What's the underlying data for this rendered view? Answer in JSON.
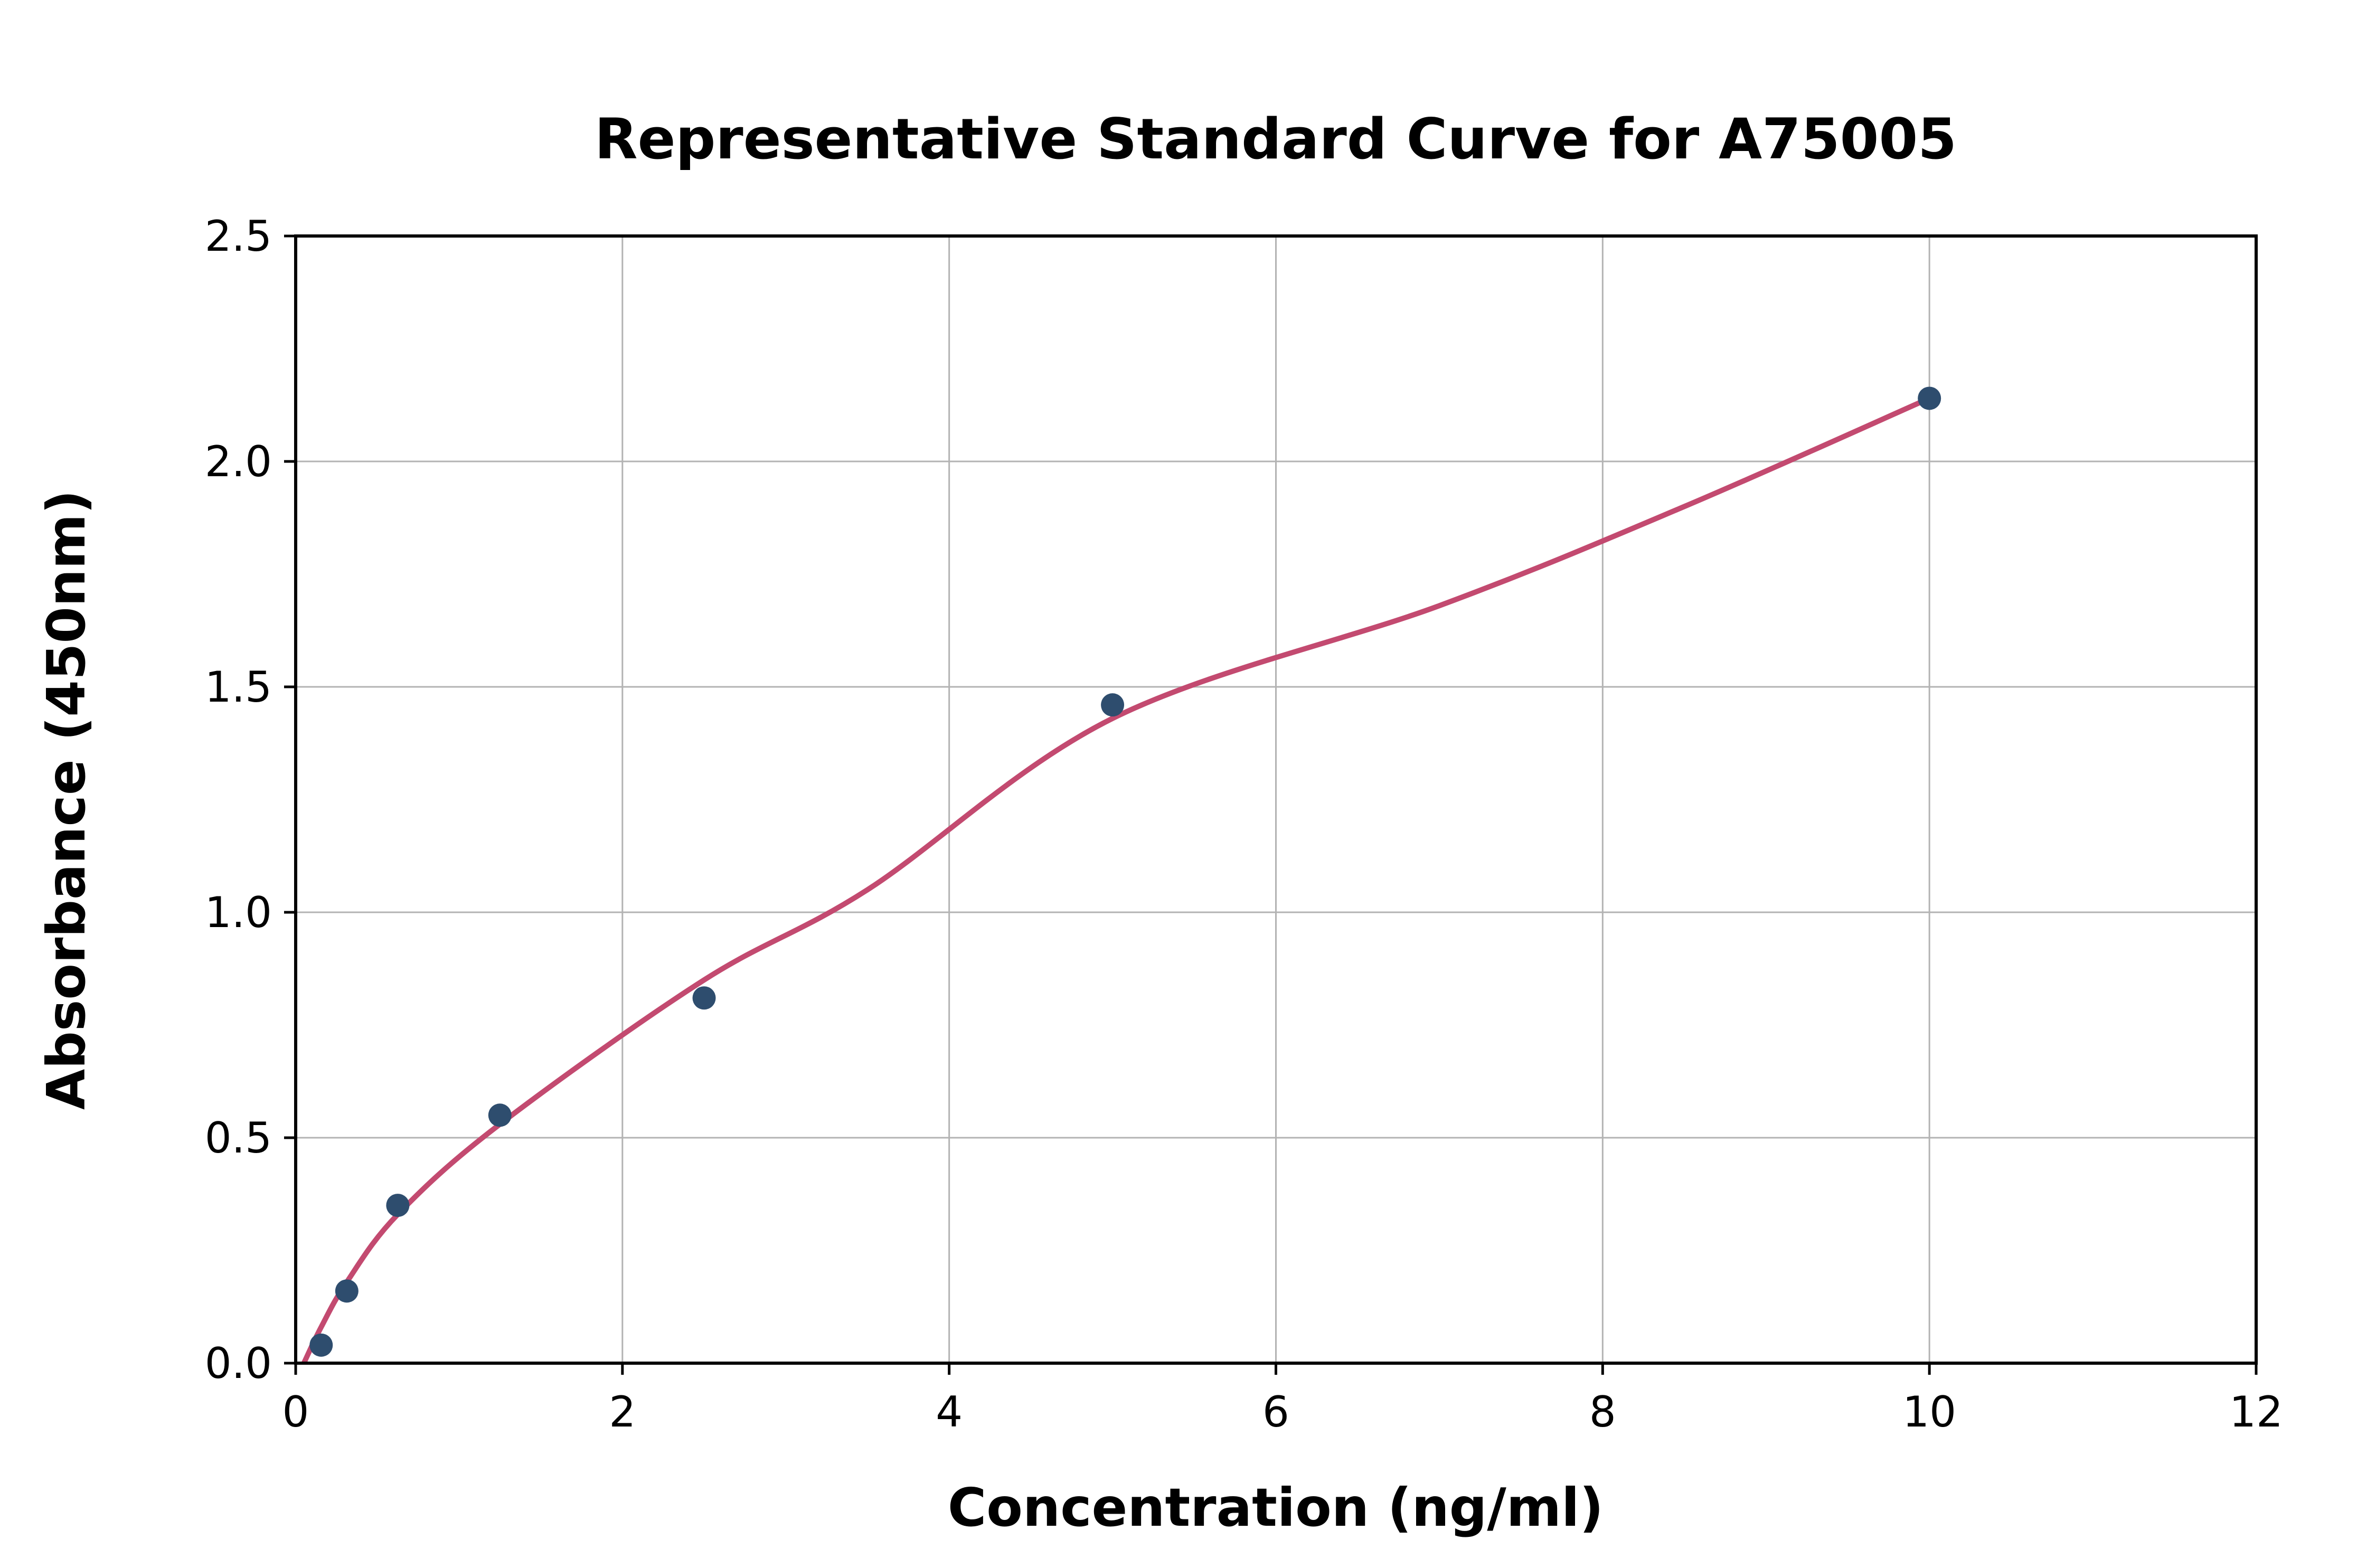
{
  "chart_data": {
    "type": "scatter",
    "title": "Representative Standard Curve for A75005",
    "xlabel": "Concentration (ng/ml)",
    "ylabel": "Absorbance (450nm)",
    "xlim": [
      0,
      12
    ],
    "ylim": [
      0,
      2.5
    ],
    "xticks": {
      "values": [
        0,
        2,
        4,
        6,
        8,
        10,
        12
      ],
      "labels": [
        "0",
        "2",
        "4",
        "6",
        "8",
        "10",
        "12"
      ]
    },
    "yticks": {
      "values": [
        0,
        0.5,
        1,
        1.5,
        2,
        2.5
      ],
      "labels": [
        "0.0",
        "0.5",
        "1.0",
        "1.5",
        "2.0",
        "2.5"
      ]
    },
    "grid": true,
    "legend": null,
    "points": [
      {
        "x": 0.156,
        "y": 0.04
      },
      {
        "x": 0.313,
        "y": 0.16
      },
      {
        "x": 0.625,
        "y": 0.35
      },
      {
        "x": 1.25,
        "y": 0.55
      },
      {
        "x": 2.5,
        "y": 0.81
      },
      {
        "x": 5,
        "y": 1.46
      },
      {
        "x": 10,
        "y": 2.14
      }
    ],
    "fit_curve": [
      {
        "x": 0.05,
        "y": 0.0
      },
      {
        "x": 0.156,
        "y": 0.08
      },
      {
        "x": 0.313,
        "y": 0.18
      },
      {
        "x": 0.625,
        "y": 0.33
      },
      {
        "x": 1.25,
        "y": 0.53
      },
      {
        "x": 2.5,
        "y": 0.85
      },
      {
        "x": 3.5,
        "y": 1.05
      },
      {
        "x": 5,
        "y": 1.43
      },
      {
        "x": 7,
        "y": 1.68
      },
      {
        "x": 8.5,
        "y": 1.9
      },
      {
        "x": 10,
        "y": 2.14
      }
    ],
    "colors": {
      "point": "#2e4d6e",
      "curve": "#c34a70",
      "grid": "#b3b3b3",
      "axis": "#000000",
      "background": "#ffffff"
    }
  }
}
